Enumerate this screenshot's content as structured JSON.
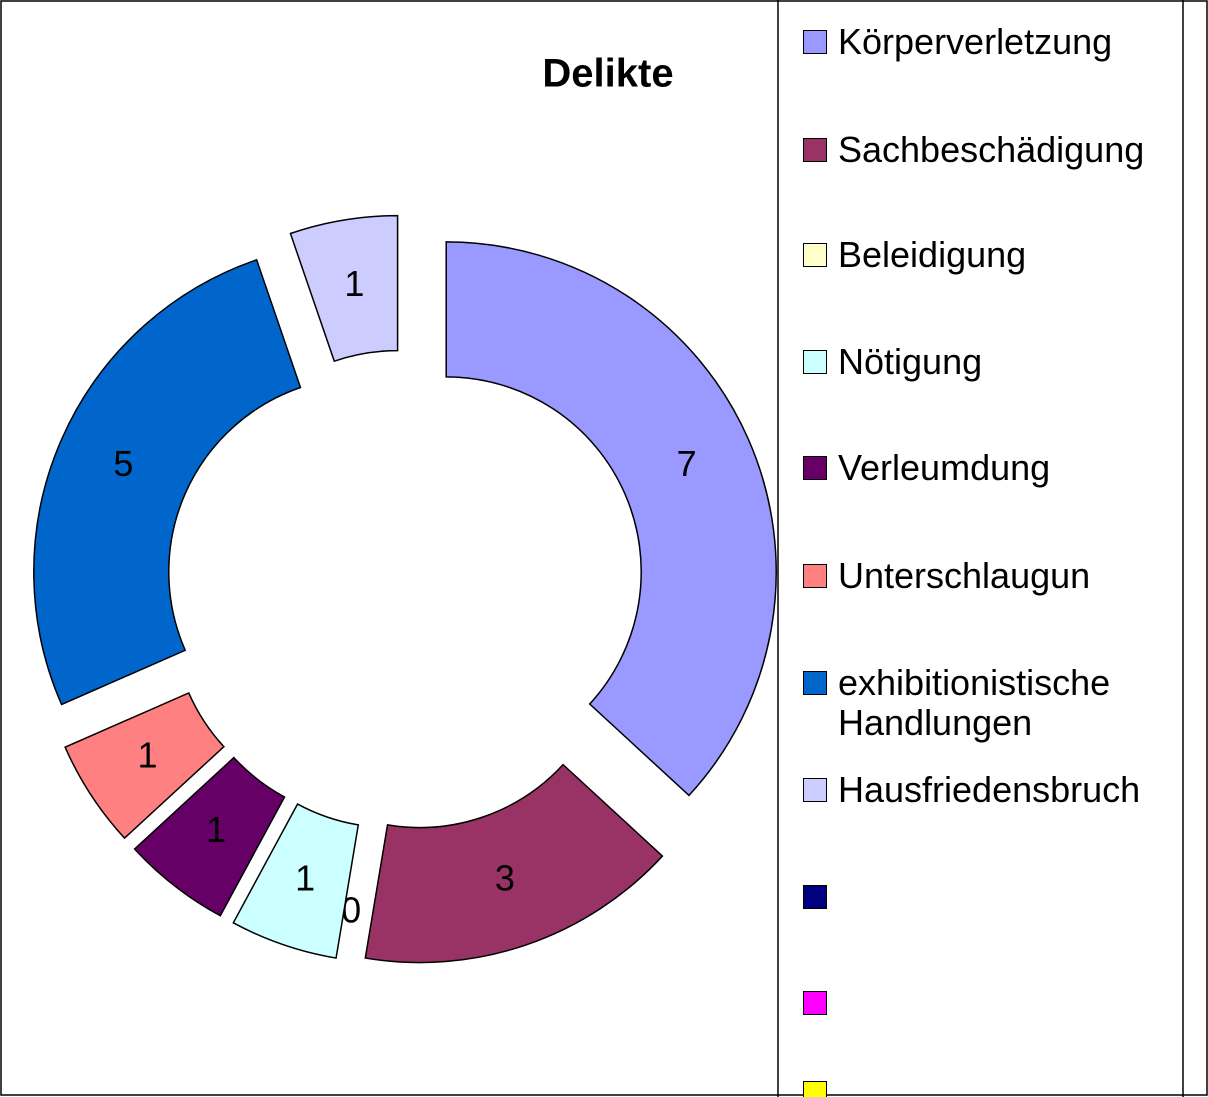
{
  "chart_data": {
    "type": "donut",
    "title": "Delikte",
    "categories": [
      "Körperverletzung",
      "Sachbeschädigung",
      "Beleidigung",
      "Nötigung",
      "Verleumdung",
      "Unterschlaugun",
      "exhibitionistische Handlungen",
      "Hausfriedensbruch",
      null,
      null,
      null
    ],
    "values": [
      7,
      3,
      0,
      1,
      1,
      1,
      5,
      1,
      null,
      null,
      null
    ],
    "colors": [
      "#9999ff",
      "#993366",
      "#ffffcc",
      "#ccffff",
      "#660066",
      "#ff8080",
      "#0066cc",
      "#ccccff",
      "#000080",
      "#ff00ff",
      "#ffff00"
    ],
    "legend": "right"
  }
}
